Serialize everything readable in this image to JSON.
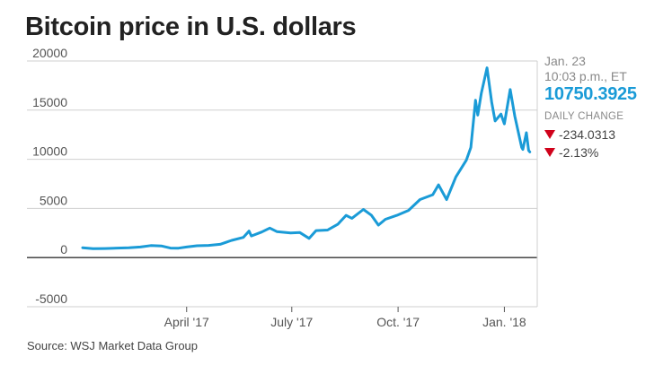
{
  "title": "Bitcoin price in U.S. dollars",
  "source": "Source: WSJ Market Data Group",
  "sidebar": {
    "date": "Jan. 23",
    "time": "10:03 p.m., ET",
    "price": "10750.3925",
    "daily_change_label": "DAILY CHANGE",
    "change_abs": "-234.0313",
    "change_pct": "-2.13%",
    "down_icon": "triangle-down-icon"
  },
  "colors": {
    "line": "#1a9bd7",
    "price": "#1a9bd7",
    "down": "#d0021b",
    "grid": "#cfcfcf",
    "zero": "#333333"
  },
  "chart_data": {
    "type": "line",
    "title": "Bitcoin price in U.S. dollars",
    "xlabel": "",
    "ylabel": "",
    "ylim": [
      -5000,
      20000
    ],
    "xlim": [
      "2017-01-01",
      "2018-01-24"
    ],
    "yticks": [
      20000,
      15000,
      10000,
      5000,
      0,
      -5000
    ],
    "xticks": [
      {
        "label": "April '17",
        "date": "2017-04-01"
      },
      {
        "label": "July '17",
        "date": "2017-07-01"
      },
      {
        "label": "Oct. '17",
        "date": "2017-10-01"
      },
      {
        "label": "Jan. '18",
        "date": "2018-01-01"
      }
    ],
    "grid": true,
    "series": [
      {
        "name": "Bitcoin price",
        "points": [
          [
            "2017-01-01",
            1000
          ],
          [
            "2017-01-10",
            900
          ],
          [
            "2017-01-20",
            920
          ],
          [
            "2017-01-31",
            970
          ],
          [
            "2017-02-10",
            1000
          ],
          [
            "2017-02-20",
            1080
          ],
          [
            "2017-03-01",
            1220
          ],
          [
            "2017-03-10",
            1190
          ],
          [
            "2017-03-18",
            970
          ],
          [
            "2017-03-25",
            960
          ],
          [
            "2017-04-01",
            1080
          ],
          [
            "2017-04-10",
            1200
          ],
          [
            "2017-04-20",
            1240
          ],
          [
            "2017-04-30",
            1350
          ],
          [
            "2017-05-10",
            1750
          ],
          [
            "2017-05-20",
            2050
          ],
          [
            "2017-05-25",
            2700
          ],
          [
            "2017-05-27",
            2200
          ],
          [
            "2017-06-05",
            2600
          ],
          [
            "2017-06-12",
            3000
          ],
          [
            "2017-06-18",
            2650
          ],
          [
            "2017-06-30",
            2500
          ],
          [
            "2017-07-08",
            2550
          ],
          [
            "2017-07-16",
            1950
          ],
          [
            "2017-07-22",
            2750
          ],
          [
            "2017-08-01",
            2800
          ],
          [
            "2017-08-10",
            3400
          ],
          [
            "2017-08-17",
            4300
          ],
          [
            "2017-08-22",
            4000
          ],
          [
            "2017-09-01",
            4900
          ],
          [
            "2017-09-08",
            4300
          ],
          [
            "2017-09-14",
            3300
          ],
          [
            "2017-09-20",
            3900
          ],
          [
            "2017-09-30",
            4300
          ],
          [
            "2017-10-10",
            4800
          ],
          [
            "2017-10-20",
            5900
          ],
          [
            "2017-10-31",
            6400
          ],
          [
            "2017-11-05",
            7400
          ],
          [
            "2017-11-12",
            5900
          ],
          [
            "2017-11-20",
            8200
          ],
          [
            "2017-11-29",
            9900
          ],
          [
            "2017-12-03",
            11200
          ],
          [
            "2017-12-07",
            16000
          ],
          [
            "2017-12-09",
            14500
          ],
          [
            "2017-12-12",
            16700
          ],
          [
            "2017-12-17",
            19300
          ],
          [
            "2017-12-21",
            15800
          ],
          [
            "2017-12-24",
            13900
          ],
          [
            "2017-12-29",
            14600
          ],
          [
            "2018-01-01",
            13600
          ],
          [
            "2018-01-06",
            17100
          ],
          [
            "2018-01-10",
            14400
          ],
          [
            "2018-01-16",
            11200
          ],
          [
            "2018-01-17",
            11000
          ],
          [
            "2018-01-20",
            12700
          ],
          [
            "2018-01-22",
            10900
          ],
          [
            "2018-01-23",
            10750
          ]
        ]
      }
    ],
    "last_value": 10750.3925,
    "daily_change": -234.0313,
    "daily_change_pct": -2.13
  }
}
